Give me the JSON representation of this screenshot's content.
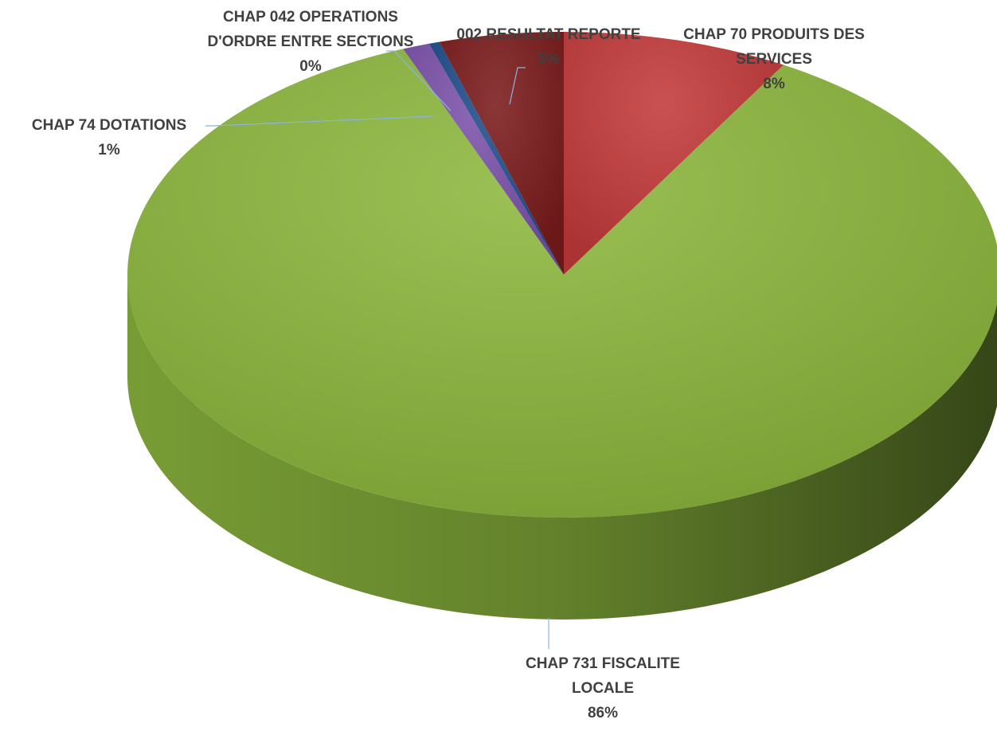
{
  "chart_data": {
    "type": "pie",
    "categories": [
      "CHAP 70 PRODUITS DES SERVICES",
      "CHAP 731 FISCALITE LOCALE",
      "CHAP 74 DOTATIONS",
      "CHAP 042 OPERATIONS D'ORDRE ENTRE SECTIONS",
      "002 RESULTAT REPORTE"
    ],
    "values": [
      8.4,
      85.6,
      1.0,
      0.4,
      4.6
    ],
    "value_labels": [
      "8%",
      "86%",
      "1%",
      "0%",
      "5%"
    ],
    "colors": [
      "#c43a3a",
      "#8db83e",
      "#7b52ab",
      "#1f4e8c",
      "#7c1b1b"
    ]
  }
}
